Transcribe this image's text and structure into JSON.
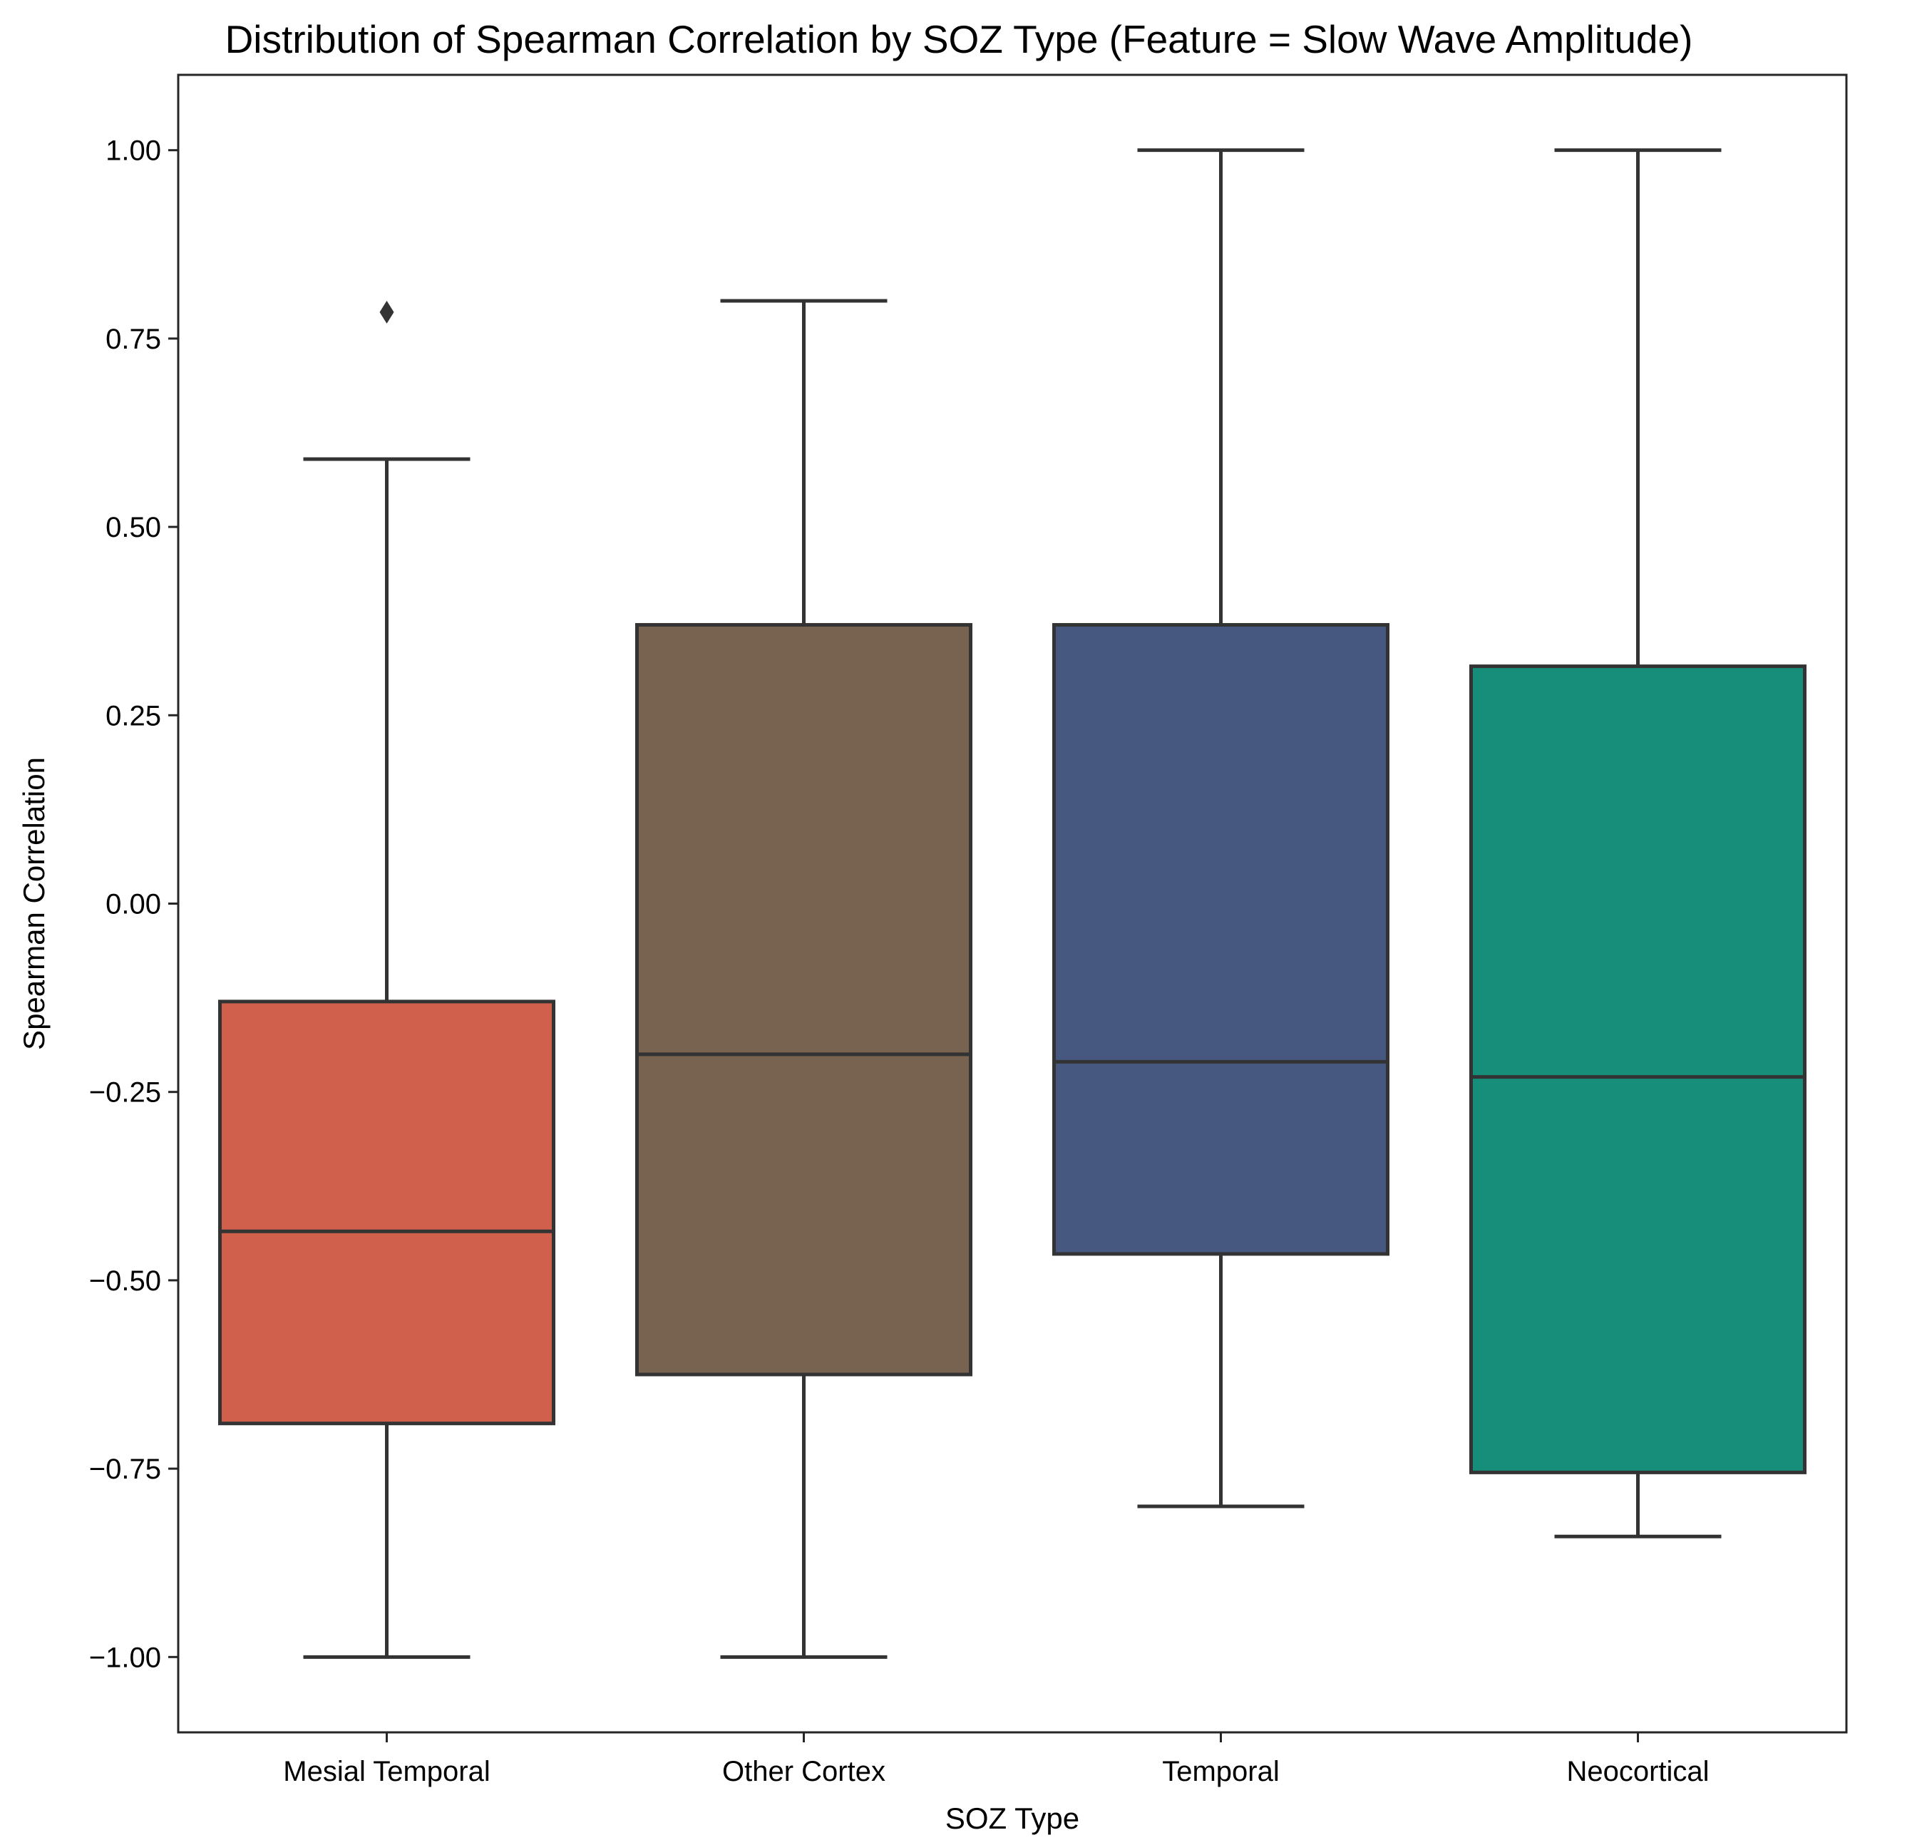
{
  "chart_data": {
    "type": "box",
    "title": "Distribution of Spearman Correlation by SOZ Type (Feature = Slow Wave Amplitude)",
    "xlabel": "SOZ Type",
    "ylabel": "Spearman Correlation",
    "ylim": [
      -1.1,
      1.1
    ],
    "yticks": [
      -1.0,
      -0.75,
      -0.5,
      -0.25,
      0.0,
      0.25,
      0.5,
      0.75,
      1.0
    ],
    "ytick_labels": [
      "−1.00",
      "−0.75",
      "−0.50",
      "−0.25",
      "0.00",
      "0.25",
      "0.50",
      "0.75",
      "1.00"
    ],
    "grid": false,
    "categories": [
      "Mesial Temporal",
      "Other Cortex",
      "Temporal",
      "Neocortical"
    ],
    "boxes": [
      {
        "category": "Mesial Temporal",
        "color": "#d05f4c",
        "whisker_low": -1.0,
        "q1": -0.69,
        "median": -0.435,
        "q3": -0.13,
        "whisker_high": 0.59,
        "outliers": [
          0.785
        ]
      },
      {
        "category": "Other Cortex",
        "color": "#77634f",
        "whisker_low": -1.0,
        "q1": -0.625,
        "median": -0.2,
        "q3": 0.37,
        "whisker_high": 0.8,
        "outliers": []
      },
      {
        "category": "Temporal",
        "color": "#46587f",
        "whisker_low": -0.8,
        "q1": -0.465,
        "median": -0.21,
        "q3": 0.37,
        "whisker_high": 1.0,
        "outliers": []
      },
      {
        "category": "Neocortical",
        "color": "#178e7a",
        "whisker_low": -0.84,
        "q1": -0.755,
        "median": -0.23,
        "q3": 0.315,
        "whisker_high": 1.0,
        "outliers": []
      }
    ]
  }
}
